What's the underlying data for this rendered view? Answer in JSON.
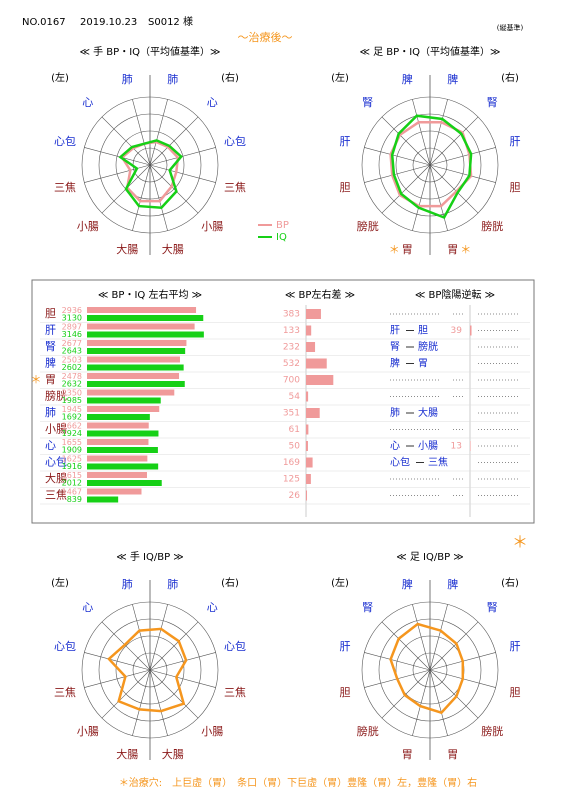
{
  "header": {
    "no": "NO.0167",
    "date": "2019.10.23",
    "patient": "S0012 様",
    "subtitle": "〜治療後〜",
    "basis": "(縦基準)"
  },
  "note_mark": "＊",
  "chart_data": [
    {
      "type": "radar",
      "title": "≪ 手 BP・IQ（平均値基準）≫",
      "side_labels": [
        "(左)",
        "(右)"
      ],
      "categories": [
        "肺",
        "心",
        "心包",
        "三焦",
        "小腸",
        "大腸",
        "大腸",
        "小腸",
        "三焦",
        "心包",
        "心",
        "肺"
      ],
      "category_colors": [
        "#1a2fd0",
        "#1a2fd0",
        "#1a2fd0",
        "#8b1a1a",
        "#8b1a1a",
        "#8b1a1a",
        "#8b1a1a",
        "#8b1a1a",
        "#8b1a1a",
        "#1a2fd0",
        "#1a2fd0",
        "#1a2fd0"
      ],
      "rlim": [
        0,
        4
      ],
      "rticks": [
        1,
        2,
        3,
        4
      ],
      "legend": true,
      "series": [
        {
          "name": "BP",
          "color": "#f09a9a",
          "values": [
            1.4,
            1.5,
            1.7,
            1.6,
            1.8,
            2.2,
            2.2,
            1.9,
            1.2,
            1.7,
            1.4,
            1.3
          ]
        },
        {
          "name": "IQ",
          "color": "#16d016",
          "values": [
            1.5,
            1.6,
            1.9,
            1.2,
            2.2,
            2.6,
            2.5,
            2.0,
            0.8,
            1.8,
            1.5,
            1.3
          ]
        }
      ]
    },
    {
      "type": "radar",
      "title": "≪ 足 BP・IQ（平均値基準）≫",
      "side_labels": [
        "(左)",
        "(右)"
      ],
      "categories": [
        "脾",
        "腎",
        "肝",
        "胆",
        "膀胱",
        "胃",
        "胃",
        "膀胱",
        "胆",
        "肝",
        "腎",
        "脾"
      ],
      "category_colors": [
        "#1a2fd0",
        "#1a2fd0",
        "#1a2fd0",
        "#8b1a1a",
        "#8b1a1a",
        "#8b1a1a",
        "#8b1a1a",
        "#8b1a1a",
        "#8b1a1a",
        "#1a2fd0",
        "#1a2fd0",
        "#1a2fd0"
      ],
      "star": "＊",
      "starred_categories": [
        5,
        6
      ],
      "rlim": [
        0,
        4
      ],
      "rticks": [
        1,
        2,
        3,
        4
      ],
      "legend": false,
      "series": [
        {
          "color": "#f09a9a",
          "values": [
            2.6,
            2.7,
            2.4,
            2.5,
            2.2,
            2.5,
            2.5,
            2.5,
            2.3,
            2.4,
            2.5,
            2.6
          ]
        },
        {
          "color": "#16d016",
          "values": [
            2.8,
            2.6,
            2.5,
            2.4,
            2.3,
            3.2,
            2.6,
            2.4,
            2.2,
            2.3,
            2.6,
            3.0
          ]
        }
      ]
    },
    {
      "type": "radar",
      "title": "≪ 手 IQ/BP ≫",
      "side_labels": [
        "(左)",
        "(右)"
      ],
      "categories": [
        "肺",
        "心",
        "心包",
        "三焦",
        "小腸",
        "大腸",
        "大腸",
        "小腸",
        "三焦",
        "心包",
        "心",
        "肺"
      ],
      "category_colors": [
        "#1a2fd0",
        "#1a2fd0",
        "#1a2fd0",
        "#8b1a1a",
        "#8b1a1a",
        "#8b1a1a",
        "#8b1a1a",
        "#8b1a1a",
        "#8b1a1a",
        "#1a2fd0",
        "#1a2fd0",
        "#1a2fd0"
      ],
      "rlim": [
        0,
        4
      ],
      "rticks": [
        1,
        2,
        3,
        4
      ],
      "legend": false,
      "series": [
        {
          "color": "#f5961e",
          "values": [
            2.5,
            2.4,
            2.2,
            1.6,
            2.8,
            2.5,
            2.4,
            2.6,
            1.5,
            2.5,
            2.1,
            2.4
          ]
        }
      ]
    },
    {
      "type": "radar",
      "title": "≪ 足 IQ/BP ≫",
      "side_labels": [
        "(左)",
        "(右)"
      ],
      "categories": [
        "脾",
        "腎",
        "肝",
        "胆",
        "膀胱",
        "胃",
        "胃",
        "膀胱",
        "胆",
        "肝",
        "腎",
        "脾"
      ],
      "category_colors": [
        "#1a2fd0",
        "#1a2fd0",
        "#1a2fd0",
        "#8b1a1a",
        "#8b1a1a",
        "#8b1a1a",
        "#8b1a1a",
        "#8b1a1a",
        "#8b1a1a",
        "#1a2fd0",
        "#1a2fd0",
        "#1a2fd0"
      ],
      "rlim": [
        0,
        4
      ],
      "rticks": [
        1,
        2,
        3,
        4
      ],
      "legend": false,
      "series": [
        {
          "color": "#f5961e",
          "values": [
            2.4,
            2.2,
            2.0,
            2.0,
            2.2,
            2.6,
            2.2,
            2.1,
            2.0,
            2.4,
            2.6,
            2.8
          ]
        }
      ]
    }
  ],
  "table": {
    "headers": [
      "≪ BP・IQ 左右平均 ≫",
      "≪ BP左右差 ≫",
      "≪ BP陰陽逆転 ≫"
    ],
    "bp_color": "#f09a9a",
    "iq_color": "#16d016",
    "diff_color": "#f09a9a",
    "avg_xlim": [
      0,
      3500
    ],
    "diff_xlim": [
      0,
      1000
    ],
    "star": "＊",
    "starred_row": 4,
    "rows": [
      {
        "organ": "胆",
        "color": "#8b1a1a",
        "bp": 2936,
        "iq": 3130,
        "diff": 383,
        "reversal": null
      },
      {
        "organ": "肝",
        "color": "#1a2fd0",
        "bp": 2897,
        "iq": 3146,
        "diff": 133,
        "reversal": {
          "pair": [
            "肝",
            "胆"
          ],
          "value": 39
        }
      },
      {
        "organ": "腎",
        "color": "#1a2fd0",
        "bp": 2677,
        "iq": 2643,
        "diff": 232,
        "reversal": {
          "pair": [
            "腎",
            "膀胱"
          ]
        }
      },
      {
        "organ": "脾",
        "color": "#1a2fd0",
        "bp": 2503,
        "iq": 2602,
        "diff": 532,
        "reversal": {
          "pair": [
            "脾",
            "胃"
          ]
        }
      },
      {
        "organ": "胃",
        "color": "#8b1a1a",
        "bp": 2478,
        "iq": 2632,
        "diff": 700,
        "reversal": null
      },
      {
        "organ": "膀胱",
        "color": "#8b1a1a",
        "bp": 2350,
        "iq": 1985,
        "diff": 54,
        "reversal": null
      },
      {
        "organ": "肺",
        "color": "#1a2fd0",
        "bp": 1945,
        "iq": 1692,
        "diff": 351,
        "reversal": {
          "pair": [
            "肺",
            "大腸"
          ]
        }
      },
      {
        "organ": "小腸",
        "color": "#8b1a1a",
        "bp": 1662,
        "iq": 1924,
        "diff": 61,
        "reversal": null
      },
      {
        "organ": "心",
        "color": "#1a2fd0",
        "bp": 1655,
        "iq": 1909,
        "diff": 50,
        "reversal": {
          "pair": [
            "心",
            "小腸"
          ],
          "value": 13
        }
      },
      {
        "organ": "心包",
        "color": "#1a2fd0",
        "bp": 1625,
        "iq": 1916,
        "diff": 169,
        "reversal": {
          "pair": [
            "心包",
            "三焦"
          ]
        }
      },
      {
        "organ": "大腸",
        "color": "#8b1a1a",
        "bp": 1615,
        "iq": 2012,
        "diff": 125,
        "reversal": null
      },
      {
        "organ": "三焦",
        "color": "#8b1a1a",
        "bp": 1467,
        "iq": 839,
        "diff": 26,
        "reversal": null
      }
    ]
  },
  "footer": "＊治療穴:　上巨虚（胃）　条口（胃）下巨虚（胃）豊隆（胃）左，豊隆（胃）右"
}
